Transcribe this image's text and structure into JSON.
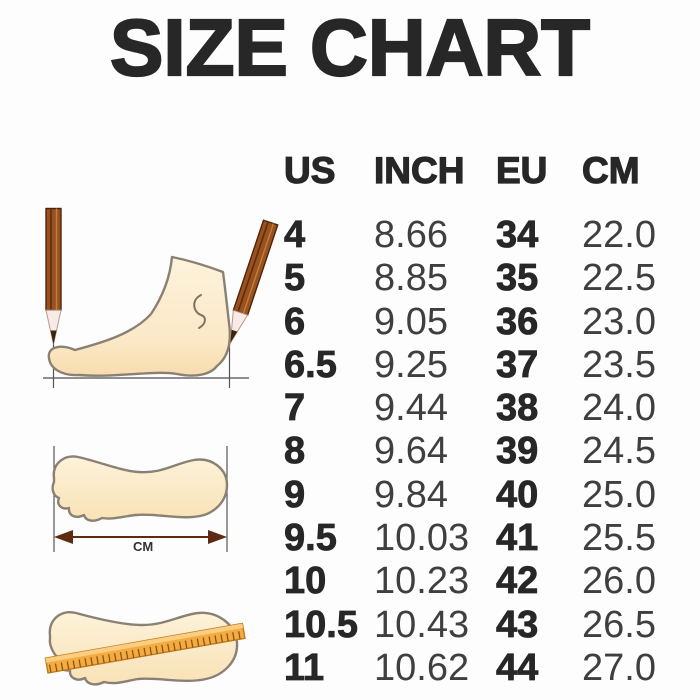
{
  "title": "SIZE CHART",
  "chart_data": {
    "type": "table",
    "title": "SIZE CHART",
    "headers": [
      "US",
      "INCH",
      "EU",
      "CM"
    ],
    "rows": [
      [
        "4",
        "8.66",
        "34",
        "22.0"
      ],
      [
        "5",
        "8.85",
        "35",
        "22.5"
      ],
      [
        "6",
        "9.05",
        "36",
        "23.0"
      ],
      [
        "6.5",
        "9.25",
        "37",
        "23.5"
      ],
      [
        "7",
        "9.44",
        "38",
        "24.0"
      ],
      [
        "8",
        "9.64",
        "39",
        "24.5"
      ],
      [
        "9",
        "9.84",
        "40",
        "25.0"
      ],
      [
        "9.5",
        "10.03",
        "41",
        "25.5"
      ],
      [
        "10",
        "10.23",
        "42",
        "26.0"
      ],
      [
        "10.5",
        "10.43",
        "43",
        "26.5"
      ],
      [
        "11",
        "10.62",
        "44",
        "27.0"
      ]
    ]
  },
  "illustrations": {
    "cm_label": "CM",
    "items": [
      "foot-side-between-pencils",
      "footprint-length-arrow",
      "footprint-with-ruler"
    ]
  },
  "colors": {
    "text": "#272727",
    "foot_fill": "#fbe8c6",
    "outline": "#8a8174",
    "pencil": "#99511f",
    "ruler": "#f4ab42",
    "arrow": "#5c2b12",
    "background": "#fdfdfd"
  }
}
